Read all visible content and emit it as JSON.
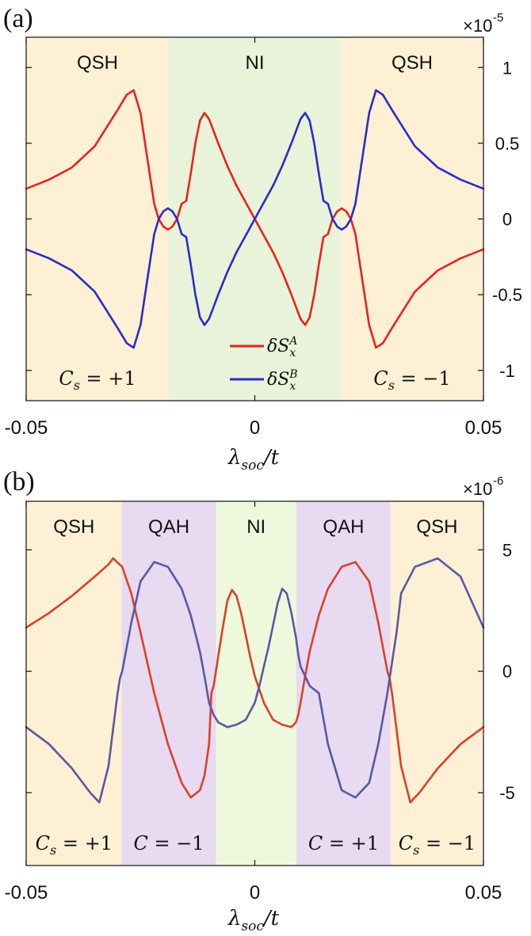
{
  "chart_data": [
    {
      "type": "line",
      "panel_label": "(a)",
      "exponent_label": "×10",
      "exponent_power": "-5",
      "xlabel": "λ_soc / t",
      "xlim": [
        -0.05,
        0.05
      ],
      "ylim": [
        -1.2,
        1.2
      ],
      "xticks": [
        -0.05,
        0,
        0.05
      ],
      "xtick_labels": [
        "-0.05",
        "0",
        "0.05"
      ],
      "yticks": [
        1,
        0.5,
        0,
        -0.5,
        -1
      ],
      "ytick_labels": [
        "1",
        "0.5",
        "0",
        "-0.5",
        "-1"
      ],
      "yaxis_side": "right",
      "regions": [
        {
          "x0": -0.05,
          "x1": -0.0188,
          "label": "QSH",
          "color": "#fdf0d5",
          "bottom_label": {
            "sym": "C",
            "sub": "s",
            "rhs": "= +1"
          }
        },
        {
          "x0": -0.0188,
          "x1": 0.0188,
          "label": "NI",
          "color": "#e8f3da",
          "bottom_label": null
        },
        {
          "x0": 0.0188,
          "x1": 0.05,
          "label": "QSH",
          "color": "#fdf0d5",
          "bottom_label": {
            "sym": "C",
            "sub": "s",
            "rhs": "= −1"
          }
        }
      ],
      "legend": {
        "placement": "bottom-center",
        "entries": [
          {
            "name": "δS_x^A",
            "base": "δS",
            "sub": "x",
            "sup": "A",
            "color": "#e8231d"
          },
          {
            "name": "δS_x^B",
            "base": "δS",
            "sub": "x",
            "sup": "B",
            "color": "#2b2bc8"
          }
        ]
      },
      "series": [
        {
          "name": "δS_x^A",
          "color": "#e8231d",
          "x": [
            -0.05,
            -0.045,
            -0.04,
            -0.035,
            -0.03,
            -0.028,
            -0.0265,
            -0.025,
            -0.0235,
            -0.022,
            -0.021,
            -0.02,
            -0.019,
            -0.018,
            -0.017,
            -0.016,
            -0.015,
            -0.014,
            -0.013,
            -0.012,
            -0.011,
            -0.01,
            -0.008,
            -0.006,
            -0.004,
            -0.002,
            0,
            0.002,
            0.004,
            0.006,
            0.008,
            0.01,
            0.011,
            0.012,
            0.013,
            0.014,
            0.015,
            0.016,
            0.017,
            0.018,
            0.019,
            0.02,
            0.021,
            0.022,
            0.0235,
            0.025,
            0.0265,
            0.028,
            0.03,
            0.035,
            0.04,
            0.045,
            0.05
          ],
          "y": [
            0.2,
            0.26,
            0.34,
            0.48,
            0.72,
            0.82,
            0.85,
            0.7,
            0.4,
            0.1,
            0.0,
            -0.05,
            -0.07,
            -0.05,
            0.0,
            0.1,
            0.12,
            0.3,
            0.5,
            0.65,
            0.7,
            0.66,
            0.5,
            0.35,
            0.22,
            0.11,
            0.0,
            -0.11,
            -0.22,
            -0.35,
            -0.5,
            -0.66,
            -0.7,
            -0.65,
            -0.5,
            -0.3,
            -0.12,
            -0.1,
            0.0,
            0.05,
            0.07,
            0.05,
            0.0,
            -0.1,
            -0.4,
            -0.7,
            -0.85,
            -0.82,
            -0.72,
            -0.48,
            -0.34,
            -0.26,
            -0.2
          ]
        },
        {
          "name": "δS_x^B",
          "color": "#2b2bc8",
          "x": [
            -0.05,
            -0.045,
            -0.04,
            -0.035,
            -0.03,
            -0.028,
            -0.0265,
            -0.025,
            -0.0235,
            -0.022,
            -0.021,
            -0.02,
            -0.019,
            -0.018,
            -0.017,
            -0.016,
            -0.015,
            -0.014,
            -0.013,
            -0.012,
            -0.011,
            -0.01,
            -0.008,
            -0.006,
            -0.004,
            -0.002,
            0,
            0.002,
            0.004,
            0.006,
            0.008,
            0.01,
            0.011,
            0.012,
            0.013,
            0.014,
            0.015,
            0.016,
            0.017,
            0.018,
            0.019,
            0.02,
            0.021,
            0.022,
            0.0235,
            0.025,
            0.0265,
            0.028,
            0.03,
            0.035,
            0.04,
            0.045,
            0.05
          ],
          "y": [
            -0.2,
            -0.26,
            -0.34,
            -0.48,
            -0.72,
            -0.82,
            -0.85,
            -0.7,
            -0.4,
            -0.1,
            0.0,
            0.05,
            0.07,
            0.05,
            0.0,
            -0.1,
            -0.12,
            -0.3,
            -0.5,
            -0.65,
            -0.7,
            -0.66,
            -0.5,
            -0.35,
            -0.22,
            -0.11,
            0.0,
            0.11,
            0.22,
            0.35,
            0.5,
            0.66,
            0.7,
            0.65,
            0.5,
            0.3,
            0.12,
            0.1,
            0.0,
            -0.05,
            -0.07,
            -0.05,
            0.0,
            0.1,
            0.4,
            0.7,
            0.85,
            0.82,
            0.72,
            0.48,
            0.34,
            0.26,
            0.2
          ]
        }
      ]
    },
    {
      "type": "line",
      "panel_label": "(b)",
      "exponent_label": "×10",
      "exponent_power": "-6",
      "xlabel": "λ_soc / t",
      "xlim": [
        -0.05,
        0.05
      ],
      "ylim": [
        -8,
        7
      ],
      "xticks": [
        -0.05,
        0,
        0.05
      ],
      "xtick_labels": [
        "-0.05",
        "0",
        "0.05"
      ],
      "yticks": [
        5,
        0,
        -5
      ],
      "ytick_labels": [
        "5",
        "0",
        "-5"
      ],
      "yaxis_side": "right",
      "regions": [
        {
          "x0": -0.05,
          "x1": -0.0291,
          "label": "QSH",
          "color": "#fdf0d5",
          "bottom_label": {
            "sym": "C",
            "sub": "s",
            "rhs": "= +1"
          }
        },
        {
          "x0": -0.0291,
          "x1": -0.0085,
          "label": "QAH",
          "color": "#e7daf1",
          "bottom_label": {
            "sym": "C",
            "sub": "",
            "rhs": "= −1"
          }
        },
        {
          "x0": -0.0085,
          "x1": 0.0091,
          "label": "NI",
          "color": "#eef8dc",
          "bottom_label": null
        },
        {
          "x0": 0.0091,
          "x1": 0.0297,
          "label": "QAH",
          "color": "#e7daf1",
          "bottom_label": {
            "sym": "C",
            "sub": "",
            "rhs": "= +1"
          }
        },
        {
          "x0": 0.0297,
          "x1": 0.05,
          "label": "QSH",
          "color": "#fdf0d5",
          "bottom_label": {
            "sym": "C",
            "sub": "s",
            "rhs": "= −1"
          }
        }
      ],
      "series": [
        {
          "name": "red",
          "color": "#d9412a",
          "x": [
            -0.05,
            -0.045,
            -0.04,
            -0.035,
            -0.032,
            -0.031,
            -0.029,
            -0.027,
            -0.025,
            -0.022,
            -0.019,
            -0.016,
            -0.014,
            -0.012,
            -0.011,
            -0.01,
            -0.0095,
            -0.009,
            -0.008,
            -0.007,
            -0.006,
            -0.005,
            -0.004,
            -0.003,
            -0.002,
            -0.001,
            0,
            0.002,
            0.004,
            0.006,
            0.008,
            0.009,
            0.0095,
            0.01,
            0.011,
            0.012,
            0.014,
            0.016,
            0.019,
            0.022,
            0.025,
            0.027,
            0.029,
            0.0295,
            0.03,
            0.031,
            0.032,
            0.034,
            0.036,
            0.04,
            0.045,
            0.05
          ],
          "y": [
            1.8,
            2.4,
            3.1,
            3.9,
            4.4,
            4.65,
            4.3,
            3.2,
            1.6,
            -0.9,
            -3.0,
            -4.6,
            -5.2,
            -4.9,
            -4.3,
            -3.0,
            -0.9,
            -0.6,
            0.6,
            1.8,
            2.9,
            3.35,
            3.1,
            2.4,
            1.5,
            0.6,
            -0.2,
            -1.3,
            -2.0,
            -2.2,
            -2.3,
            -2.1,
            -1.8,
            -1.3,
            -0.2,
            0.8,
            2.3,
            3.4,
            4.3,
            4.5,
            3.7,
            2.0,
            0.0,
            -0.3,
            -0.9,
            -2.4,
            -3.9,
            -5.4,
            -5.0,
            -4.0,
            -3.0,
            -2.3
          ]
        },
        {
          "name": "blue",
          "color": "#5a58a3",
          "x": [
            -0.05,
            -0.045,
            -0.04,
            -0.036,
            -0.034,
            -0.032,
            -0.031,
            -0.03,
            -0.0295,
            -0.029,
            -0.027,
            -0.025,
            -0.022,
            -0.019,
            -0.016,
            -0.014,
            -0.012,
            -0.011,
            -0.01,
            -0.009,
            -0.008,
            -0.006,
            -0.004,
            -0.002,
            0,
            0.001,
            0.002,
            0.003,
            0.004,
            0.005,
            0.006,
            0.007,
            0.008,
            0.009,
            0.0095,
            0.01,
            0.011,
            0.012,
            0.014,
            0.016,
            0.019,
            0.022,
            0.025,
            0.027,
            0.029,
            0.031,
            0.032,
            0.035,
            0.04,
            0.045,
            0.05
          ],
          "y": [
            -2.3,
            -3.0,
            -4.0,
            -5.0,
            -5.4,
            -3.9,
            -2.4,
            -0.9,
            -0.3,
            0.0,
            2.0,
            3.7,
            4.5,
            4.3,
            3.4,
            2.3,
            0.8,
            -0.2,
            -1.3,
            -1.8,
            -2.1,
            -2.3,
            -2.2,
            -2.0,
            -1.3,
            -0.6,
            0.2,
            1.0,
            1.9,
            2.8,
            3.4,
            3.2,
            2.4,
            1.4,
            0.7,
            0.2,
            -0.2,
            -0.6,
            -0.9,
            -3.0,
            -4.9,
            -5.2,
            -4.6,
            -3.0,
            -0.9,
            1.6,
            3.2,
            4.3,
            4.65,
            3.9,
            1.8
          ]
        }
      ]
    }
  ]
}
